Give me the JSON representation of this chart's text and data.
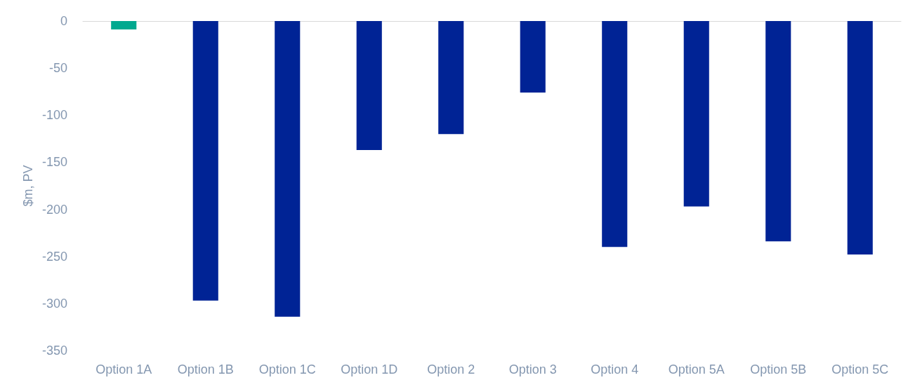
{
  "chart_data": {
    "type": "bar",
    "ylabel": "$m, PV",
    "categories": [
      "Option 1A",
      "Option 1B",
      "Option 1C",
      "Option 1D",
      "Option 2",
      "Option 3",
      "Option 4",
      "Option 5A",
      "Option 5B",
      "Option 5C"
    ],
    "values": [
      -9,
      -297,
      -314,
      -137,
      -120,
      -76,
      -240,
      -197,
      -234,
      -248
    ],
    "colors": [
      "#00a98f",
      "#002395",
      "#002395",
      "#002395",
      "#002395",
      "#002395",
      "#002395",
      "#002395",
      "#002395",
      "#002395"
    ],
    "ylim": [
      -350,
      0
    ],
    "yticks": [
      -350,
      -300,
      -250,
      -200,
      -150,
      -100,
      -50,
      0
    ],
    "grid": false
  }
}
